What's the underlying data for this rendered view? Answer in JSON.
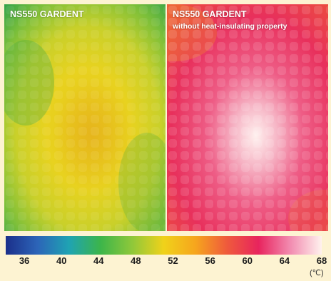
{
  "panels": [
    {
      "title": "NS550 GARDENT",
      "subtitle": ""
    },
    {
      "title": "NS550 GARDENT",
      "subtitle": "without heat-insulating property"
    }
  ],
  "scale": {
    "ticks": [
      "36",
      "40",
      "44",
      "48",
      "52",
      "56",
      "60",
      "64",
      "68"
    ],
    "unit": "(℃)",
    "min": 34,
    "max": 68,
    "colors": [
      "#1b2f8a",
      "#2c64b8",
      "#1fa3b3",
      "#3cb54a",
      "#8fc83a",
      "#f0d21a",
      "#f6a61d",
      "#ef5a3c",
      "#e8245e",
      "#f28bb0",
      "#fff2ee"
    ]
  },
  "colors": {
    "background": "#fdf3d2",
    "left_hot": "#e6c81e",
    "left_cool": "#3aa84a",
    "right_hot": "#ffeef0",
    "right_base": "#e9315c"
  }
}
